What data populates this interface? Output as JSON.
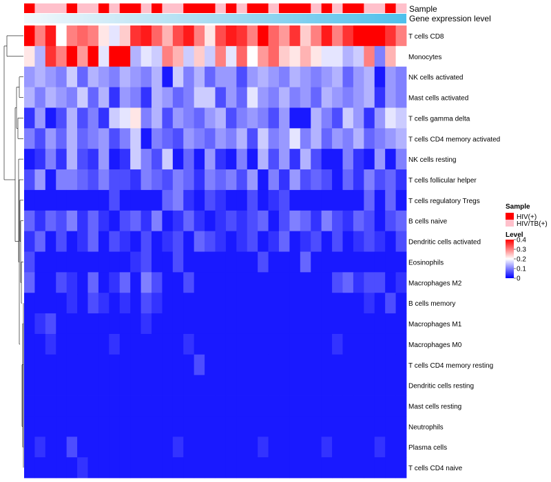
{
  "chart_data": {
    "type": "heatmap",
    "title": "",
    "annotation_tracks": [
      {
        "name": "Sample",
        "label": "Sample"
      },
      {
        "name": "Gene expression level",
        "label": "Gene expression level"
      }
    ],
    "n_columns": 36,
    "sample_annotation": [
      "HIV(+)",
      "HIV/TB(+)",
      "HIV/TB(+)",
      "HIV/TB(+)",
      "HIV(+)",
      "HIV/TB(+)",
      "HIV/TB(+)",
      "HIV(+)",
      "HIV/TB(+)",
      "HIV(+)",
      "HIV(+)",
      "HIV/TB(+)",
      "HIV(+)",
      "HIV/TB(+)",
      "HIV/TB(+)",
      "HIV(+)",
      "HIV(+)",
      "HIV(+)",
      "HIV/TB(+)",
      "HIV(+)",
      "HIV/TB(+)",
      "HIV(+)",
      "HIV(+)",
      "HIV/TB(+)",
      "HIV(+)",
      "HIV(+)",
      "HIV(+)",
      "HIV/TB(+)",
      "HIV(+)",
      "HIV/TB(+)",
      "HIV(+)",
      "HIV(+)",
      "HIV/TB(+)",
      "HIV/TB(+)",
      "HIV(+)",
      "HIV/TB(+)"
    ],
    "rows": [
      "T cells CD8",
      "Monocytes",
      "NK cells activated",
      "Mast cells activated",
      "T cells gamma delta",
      "T cells CD4 memory activated",
      "NK cells resting",
      "T cells follicular helper",
      "T cells regulatory  Tregs",
      "B cells naive",
      "Dendritic cells activated",
      "Eosinophils",
      "Macrophages M2",
      "B cells memory",
      "Macrophages M1",
      "Macrophages M0",
      "T cells CD4 memory resting",
      "Dendritic cells resting",
      "Mast cells resting",
      "Neutrophils",
      "Plasma cells",
      "T cells CD4 naive"
    ],
    "values": [
      [
        0.4,
        0.3,
        0.38,
        0.2,
        0.3,
        0.32,
        0.3,
        0.22,
        0.18,
        0.24,
        0.36,
        0.38,
        0.32,
        0.26,
        0.34,
        0.38,
        0.3,
        0.22,
        0.34,
        0.38,
        0.36,
        0.3,
        0.4,
        0.32,
        0.28,
        0.36,
        0.24,
        0.3,
        0.38,
        0.3,
        0.36,
        0.4,
        0.4,
        0.4,
        0.36,
        0.3
      ],
      [
        0.22,
        0.14,
        0.36,
        0.3,
        0.4,
        0.28,
        0.42,
        0.18,
        0.42,
        0.42,
        0.14,
        0.18,
        0.16,
        0.3,
        0.26,
        0.16,
        0.24,
        0.16,
        0.3,
        0.18,
        0.32,
        0.2,
        0.28,
        0.32,
        0.24,
        0.22,
        0.26,
        0.22,
        0.18,
        0.18,
        0.14,
        0.16,
        0.3,
        0.1,
        0.26,
        0.2
      ],
      [
        0.12,
        0.14,
        0.12,
        0.1,
        0.16,
        0.08,
        0.14,
        0.12,
        0.1,
        0.14,
        0.12,
        0.1,
        0.14,
        0.02,
        0.16,
        0.1,
        0.14,
        0.08,
        0.12,
        0.12,
        0.06,
        0.12,
        0.14,
        0.12,
        0.1,
        0.14,
        0.12,
        0.1,
        0.12,
        0.14,
        0.08,
        0.12,
        0.14,
        0.02,
        0.12,
        0.1
      ],
      [
        0.14,
        0.1,
        0.14,
        0.12,
        0.1,
        0.16,
        0.08,
        0.14,
        0.04,
        0.12,
        0.1,
        0.04,
        0.14,
        0.12,
        0.08,
        0.1,
        0.16,
        0.16,
        0.06,
        0.12,
        0.08,
        0.18,
        0.12,
        0.1,
        0.14,
        0.1,
        0.12,
        0.08,
        0.14,
        0.12,
        0.1,
        0.12,
        0.14,
        0.04,
        0.12,
        0.1
      ],
      [
        0.04,
        0.12,
        0.02,
        0.06,
        0.14,
        0.06,
        0.1,
        0.04,
        0.16,
        0.18,
        0.22,
        0.1,
        0.14,
        0.06,
        0.12,
        0.1,
        0.08,
        0.12,
        0.14,
        0.06,
        0.1,
        0.12,
        0.1,
        0.06,
        0.12,
        0.02,
        0.02,
        0.14,
        0.1,
        0.06,
        0.16,
        0.12,
        0.04,
        0.12,
        0.18,
        0.16
      ],
      [
        0.1,
        0.06,
        0.12,
        0.08,
        0.14,
        0.08,
        0.1,
        0.12,
        0.06,
        0.1,
        0.16,
        0.02,
        0.1,
        0.08,
        0.06,
        0.12,
        0.1,
        0.08,
        0.12,
        0.1,
        0.14,
        0.06,
        0.16,
        0.1,
        0.12,
        0.18,
        0.1,
        0.14,
        0.08,
        0.12,
        0.1,
        0.14,
        0.08,
        0.1,
        0.12,
        0.14
      ],
      [
        0.02,
        0.04,
        0.1,
        0.04,
        0.14,
        0.06,
        0.04,
        0.12,
        0.02,
        0.04,
        0.16,
        0.1,
        0.06,
        0.16,
        0.02,
        0.08,
        0.02,
        0.12,
        0.04,
        0.02,
        0.1,
        0.02,
        0.14,
        0.06,
        0.12,
        0.04,
        0.14,
        0.06,
        0.02,
        0.02,
        0.1,
        0.04,
        0.02,
        0.12,
        0.02,
        0.1
      ],
      [
        0.06,
        0.12,
        0.02,
        0.1,
        0.1,
        0.08,
        0.06,
        0.1,
        0.06,
        0.06,
        0.04,
        0.1,
        0.08,
        0.06,
        0.1,
        0.08,
        0.04,
        0.1,
        0.08,
        0.1,
        0.06,
        0.12,
        0.02,
        0.1,
        0.04,
        0.12,
        0.06,
        0.08,
        0.06,
        0.02,
        0.08,
        0.04,
        0.1,
        0.06,
        0.08,
        0.04
      ],
      [
        0.02,
        0.02,
        0.02,
        0.02,
        0.02,
        0.02,
        0.02,
        0.02,
        0.06,
        0.02,
        0.02,
        0.02,
        0.02,
        0.08,
        0.1,
        0.04,
        0.02,
        0.06,
        0.04,
        0.02,
        0.02,
        0.06,
        0.02,
        0.04,
        0.06,
        0.02,
        0.02,
        0.02,
        0.02,
        0.02,
        0.02,
        0.02,
        0.08,
        0.02,
        0.08,
        0.02
      ],
      [
        0.08,
        0.04,
        0.08,
        0.06,
        0.1,
        0.04,
        0.08,
        0.04,
        0.02,
        0.06,
        0.08,
        0.04,
        0.1,
        0.02,
        0.04,
        0.08,
        0.04,
        0.02,
        0.04,
        0.06,
        0.04,
        0.06,
        0.08,
        0.02,
        0.06,
        0.1,
        0.08,
        0.04,
        0.1,
        0.06,
        0.04,
        0.08,
        0.06,
        0.02,
        0.06,
        0.08
      ],
      [
        0.04,
        0.08,
        0.02,
        0.06,
        0.02,
        0.04,
        0.08,
        0.02,
        0.06,
        0.04,
        0.02,
        0.06,
        0.02,
        0.04,
        0.06,
        0.02,
        0.08,
        0.06,
        0.04,
        0.02,
        0.04,
        0.06,
        0.02,
        0.04,
        0.08,
        0.02,
        0.04,
        0.06,
        0.02,
        0.06,
        0.02,
        0.04,
        0.06,
        0.04,
        0.02,
        0.06
      ],
      [
        0.06,
        0.02,
        0.02,
        0.02,
        0.02,
        0.02,
        0.02,
        0.02,
        0.02,
        0.02,
        0.04,
        0.06,
        0.02,
        0.02,
        0.06,
        0.02,
        0.02,
        0.02,
        0.02,
        0.02,
        0.02,
        0.02,
        0.06,
        0.02,
        0.02,
        0.02,
        0.08,
        0.02,
        0.02,
        0.02,
        0.02,
        0.02,
        0.02,
        0.02,
        0.02,
        0.02
      ],
      [
        0.08,
        0.02,
        0.02,
        0.06,
        0.04,
        0.02,
        0.08,
        0.02,
        0.04,
        0.08,
        0.02,
        0.1,
        0.06,
        0.02,
        0.02,
        0.06,
        0.02,
        0.02,
        0.02,
        0.02,
        0.02,
        0.02,
        0.02,
        0.02,
        0.02,
        0.02,
        0.02,
        0.02,
        0.02,
        0.06,
        0.08,
        0.04,
        0.06,
        0.06,
        0.02,
        0.04
      ],
      [
        0.02,
        0.02,
        0.02,
        0.02,
        0.04,
        0.02,
        0.06,
        0.04,
        0.02,
        0.04,
        0.02,
        0.06,
        0.04,
        0.02,
        0.02,
        0.02,
        0.02,
        0.02,
        0.02,
        0.02,
        0.02,
        0.02,
        0.02,
        0.02,
        0.02,
        0.02,
        0.02,
        0.02,
        0.02,
        0.02,
        0.02,
        0.02,
        0.04,
        0.02,
        0.06,
        0.02
      ],
      [
        0.02,
        0.04,
        0.06,
        0.02,
        0.02,
        0.02,
        0.02,
        0.02,
        0.02,
        0.02,
        0.02,
        0.04,
        0.02,
        0.02,
        0.02,
        0.02,
        0.02,
        0.02,
        0.02,
        0.02,
        0.02,
        0.02,
        0.02,
        0.02,
        0.02,
        0.02,
        0.02,
        0.02,
        0.02,
        0.02,
        0.02,
        0.02,
        0.02,
        0.02,
        0.02,
        0.02
      ],
      [
        0.02,
        0.02,
        0.04,
        0.02,
        0.02,
        0.02,
        0.02,
        0.02,
        0.04,
        0.02,
        0.02,
        0.02,
        0.02,
        0.02,
        0.02,
        0.04,
        0.02,
        0.02,
        0.02,
        0.02,
        0.02,
        0.02,
        0.02,
        0.02,
        0.02,
        0.02,
        0.02,
        0.02,
        0.02,
        0.04,
        0.02,
        0.02,
        0.02,
        0.02,
        0.02,
        0.02
      ],
      [
        0.02,
        0.02,
        0.02,
        0.02,
        0.02,
        0.02,
        0.02,
        0.02,
        0.02,
        0.02,
        0.02,
        0.02,
        0.02,
        0.02,
        0.02,
        0.02,
        0.06,
        0.02,
        0.02,
        0.02,
        0.02,
        0.02,
        0.02,
        0.02,
        0.02,
        0.02,
        0.02,
        0.02,
        0.02,
        0.02,
        0.02,
        0.02,
        0.02,
        0.02,
        0.02,
        0.02
      ],
      [
        0.02,
        0.02,
        0.02,
        0.02,
        0.02,
        0.02,
        0.02,
        0.02,
        0.02,
        0.02,
        0.02,
        0.02,
        0.02,
        0.02,
        0.02,
        0.02,
        0.02,
        0.02,
        0.02,
        0.02,
        0.02,
        0.02,
        0.02,
        0.02,
        0.02,
        0.02,
        0.02,
        0.02,
        0.02,
        0.02,
        0.02,
        0.02,
        0.02,
        0.02,
        0.02,
        0.02
      ],
      [
        0.02,
        0.02,
        0.02,
        0.02,
        0.02,
        0.02,
        0.02,
        0.02,
        0.02,
        0.02,
        0.02,
        0.02,
        0.02,
        0.02,
        0.02,
        0.02,
        0.02,
        0.02,
        0.02,
        0.02,
        0.02,
        0.02,
        0.02,
        0.02,
        0.02,
        0.02,
        0.02,
        0.02,
        0.02,
        0.02,
        0.02,
        0.02,
        0.02,
        0.02,
        0.02,
        0.02
      ],
      [
        0.02,
        0.02,
        0.02,
        0.02,
        0.02,
        0.02,
        0.02,
        0.02,
        0.02,
        0.02,
        0.02,
        0.02,
        0.02,
        0.02,
        0.02,
        0.02,
        0.02,
        0.02,
        0.02,
        0.02,
        0.02,
        0.02,
        0.02,
        0.02,
        0.02,
        0.02,
        0.02,
        0.02,
        0.02,
        0.02,
        0.02,
        0.02,
        0.02,
        0.02,
        0.02,
        0.02
      ],
      [
        0.02,
        0.04,
        0.02,
        0.02,
        0.06,
        0.02,
        0.02,
        0.02,
        0.02,
        0.02,
        0.02,
        0.02,
        0.02,
        0.02,
        0.04,
        0.02,
        0.02,
        0.02,
        0.02,
        0.02,
        0.02,
        0.02,
        0.04,
        0.02,
        0.02,
        0.02,
        0.02,
        0.02,
        0.04,
        0.02,
        0.02,
        0.02,
        0.02,
        0.04,
        0.02,
        0.02
      ],
      [
        0.02,
        0.02,
        0.02,
        0.02,
        0.02,
        0.04,
        0.02,
        0.02,
        0.02,
        0.02,
        0.02,
        0.02,
        0.02,
        0.02,
        0.02,
        0.02,
        0.02,
        0.02,
        0.02,
        0.02,
        0.02,
        0.02,
        0.02,
        0.02,
        0.02,
        0.02,
        0.02,
        0.02,
        0.02,
        0.02,
        0.02,
        0.02,
        0.02,
        0.02,
        0.02,
        0.02
      ]
    ],
    "color_scale": {
      "min": 0,
      "mid": 0.2,
      "max": 0.4,
      "low_color": "#0000ff",
      "mid_color": "#ffffff",
      "high_color": "#ff0000"
    },
    "legend": {
      "sample_title": "Sample",
      "sample_entries": [
        {
          "label": "HIV(+)",
          "color": "#ff0000"
        },
        {
          "label": "HIV/TB(+)",
          "color": "#ffc0cb"
        }
      ],
      "level_title": "Level",
      "level_ticks": [
        0.4,
        0.3,
        0.2,
        0.1,
        0
      ],
      "level_tick_labels": [
        "0.4",
        "0.3",
        "0.2",
        "0.1",
        "0"
      ],
      "placement": "right"
    },
    "gene_expression_colors": [
      "#e8f4fa",
      "#54c4ec"
    ],
    "dendrogram": "rows"
  }
}
